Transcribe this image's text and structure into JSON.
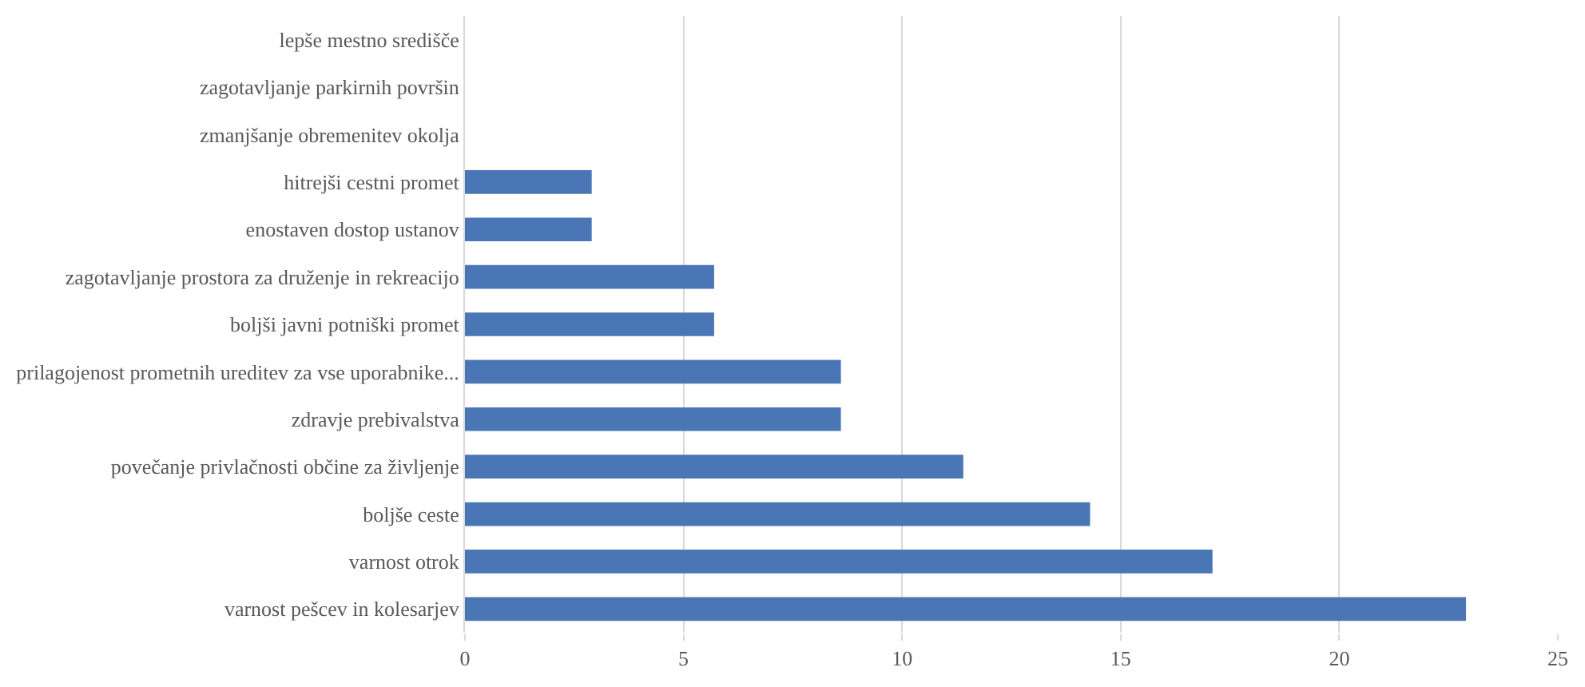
{
  "chart_data": {
    "type": "bar",
    "orientation": "horizontal",
    "categories": [
      "lepše mestno središče",
      "zagotavljanje parkirnih površin",
      "zmanjšanje obremenitev okolja",
      "hitrejši cestni promet",
      "enostaven dostop ustanov",
      "zagotavljanje prostora za druženje in rekreacijo",
      "boljši javni potniški promet",
      "prilagojenost prometnih ureditev za vse uporabnike...",
      "zdravje prebivalstva",
      "povečanje privlačnosti občine za življenje",
      "boljše ceste",
      "varnost otrok",
      "varnost pešcev in kolesarjev"
    ],
    "values": [
      0,
      0,
      0,
      2.9,
      2.9,
      5.7,
      5.7,
      8.6,
      8.6,
      11.4,
      14.3,
      17.1,
      22.9
    ],
    "color": "#4a76b5",
    "xlim": [
      0,
      25
    ],
    "xticks": [
      0,
      5,
      10,
      15,
      20,
      25
    ],
    "grid": "x"
  }
}
